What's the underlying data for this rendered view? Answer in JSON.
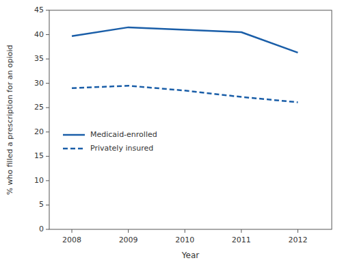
{
  "chart_data": {
    "type": "line",
    "x": [
      2008,
      2009,
      2010,
      2011,
      2012
    ],
    "series": [
      {
        "name": "Medicaid-enrolled",
        "color": "#1a5ea8",
        "line_style": "solid",
        "values": [
          39.7,
          41.5,
          41.0,
          40.5,
          36.3
        ]
      },
      {
        "name": "Privately insured",
        "color": "#1a5ea8",
        "line_style": "dashed",
        "values": [
          29.0,
          29.5,
          28.5,
          27.2,
          26.1
        ]
      }
    ],
    "xlabel": "Year",
    "ylabel": "% who filled a prescription for an opioid",
    "xlim": [
      2007.6,
      2012.6
    ],
    "xticks": [
      2008,
      2009,
      2010,
      2011,
      2012
    ],
    "ylim": [
      0,
      45
    ],
    "yticks": [
      0,
      5,
      10,
      15,
      20,
      25,
      30,
      35,
      40,
      45
    ],
    "grid": false,
    "legend": "center left"
  }
}
